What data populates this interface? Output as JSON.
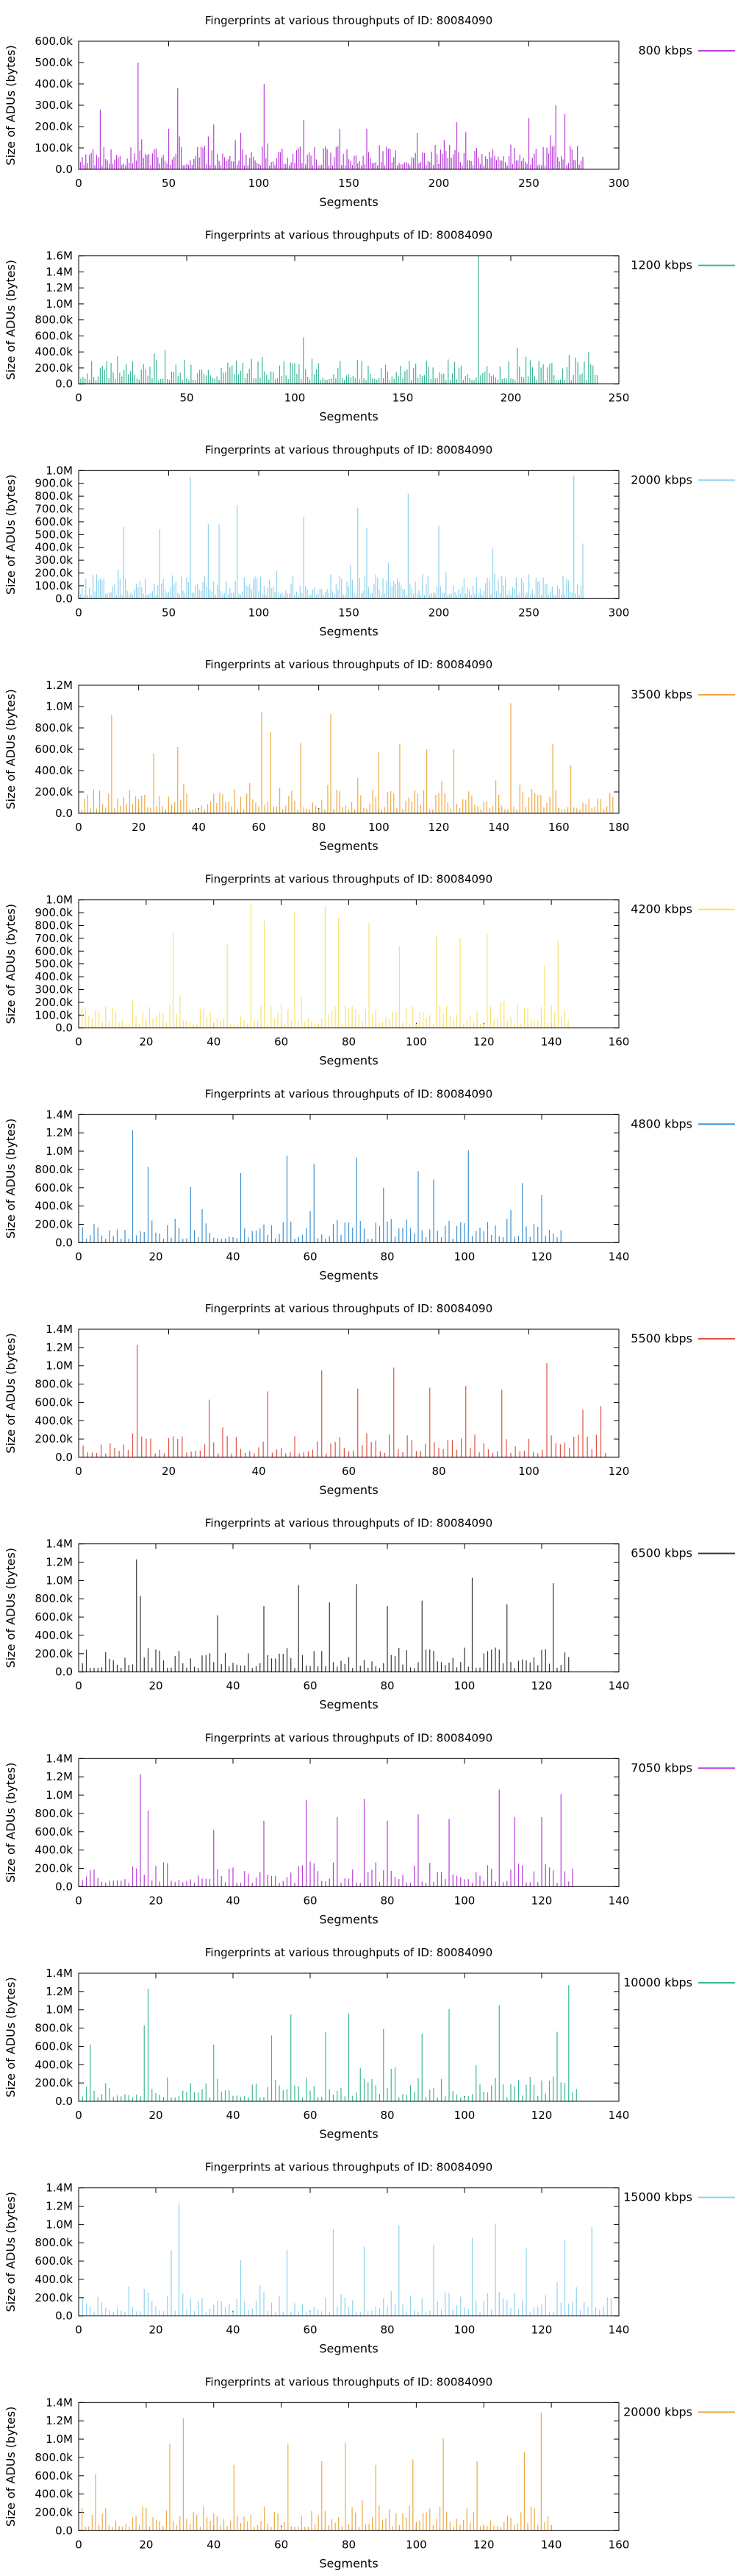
{
  "chart_data": [
    {
      "type": "bar",
      "title": "Fingerprints at various throughputs of ID: 80084090",
      "xlabel": "Segments",
      "ylabel": "Size of ADUs (bytes)",
      "xlim": [
        0,
        300
      ],
      "ylim": [
        0,
        600000
      ],
      "xticks": [
        "0",
        "50",
        "100",
        "150",
        "200",
        "250",
        "300"
      ],
      "yticks": [
        "0.0",
        "100.0k",
        "200.0k",
        "300.0k",
        "400.0k",
        "500.0k",
        "600.0k"
      ],
      "legend": {
        "placement": "right",
        "label": "800 kbps"
      },
      "color": "#b73cd8",
      "segments": 280,
      "peaks": [
        [
          12,
          280000
        ],
        [
          33,
          500000
        ],
        [
          35,
          140000
        ],
        [
          50,
          190000
        ],
        [
          55,
          380000
        ],
        [
          75,
          210000
        ],
        [
          90,
          170000
        ],
        [
          103,
          400000
        ],
        [
          125,
          230000
        ],
        [
          145,
          190000
        ],
        [
          160,
          190000
        ],
        [
          188,
          170000
        ],
        [
          210,
          220000
        ],
        [
          250,
          240000
        ],
        [
          262,
          160000
        ],
        [
          265,
          300000
        ],
        [
          270,
          260000
        ]
      ]
    },
    {
      "type": "bar",
      "title": "Fingerprints at various throughputs of ID: 80084090",
      "xlabel": "Segments",
      "ylabel": "Size of ADUs (bytes)",
      "xlim": [
        0,
        250
      ],
      "ylim": [
        0,
        1600000
      ],
      "xticks": [
        "0",
        "50",
        "100",
        "150",
        "200",
        "250"
      ],
      "yticks": [
        "0.0",
        "200.0k",
        "400.0k",
        "600.0k",
        "800.0k",
        "1.0M",
        "1.2M",
        "1.4M",
        "1.6M"
      ],
      "legend": {
        "placement": "right",
        "label": "1200 kbps"
      },
      "color": "#3ab796",
      "segments": 240,
      "peaks": [
        [
          35,
          380000
        ],
        [
          40,
          420000
        ],
        [
          104,
          580000
        ],
        [
          185,
          1600000
        ],
        [
          207,
          340000
        ],
        [
          230,
          330000
        ],
        [
          236,
          400000
        ]
      ]
    },
    {
      "type": "bar",
      "title": "Fingerprints at various throughputs of ID: 80084090",
      "xlabel": "Segments",
      "ylabel": "Size of ADUs (bytes)",
      "xlim": [
        0,
        300
      ],
      "ylim": [
        0,
        1000000
      ],
      "xticks": [
        "0",
        "50",
        "100",
        "150",
        "200",
        "250",
        "300"
      ],
      "yticks": [
        "0.0",
        "100.0k",
        "200.0k",
        "300.0k",
        "400.0k",
        "500.0k",
        "600.0k",
        "700.0k",
        "800.0k",
        "900.0k",
        "1.0M"
      ],
      "legend": {
        "placement": "right",
        "label": "2000 kbps"
      },
      "color": "#8ed2ee",
      "segments": 280,
      "peaks": [
        [
          25,
          560000
        ],
        [
          45,
          540000
        ],
        [
          62,
          950000
        ],
        [
          72,
          580000
        ],
        [
          78,
          580000
        ],
        [
          88,
          730000
        ],
        [
          125,
          640000
        ],
        [
          155,
          710000
        ],
        [
          160,
          550000
        ],
        [
          183,
          820000
        ],
        [
          200,
          570000
        ],
        [
          230,
          390000
        ],
        [
          275,
          960000
        ],
        [
          280,
          430000
        ]
      ]
    },
    {
      "type": "bar",
      "title": "Fingerprints at various throughputs of ID: 80084090",
      "xlabel": "Segments",
      "ylabel": "Size of ADUs (bytes)",
      "xlim": [
        0,
        180
      ],
      "ylim": [
        0,
        1200000
      ],
      "xticks": [
        "0",
        "20",
        "40",
        "60",
        "80",
        "100",
        "120",
        "140",
        "160",
        "180"
      ],
      "yticks": [
        "0.0",
        "200.0k",
        "400.0k",
        "600.0k",
        "800.0k",
        "1.0M",
        "1.2M"
      ],
      "legend": {
        "placement": "right",
        "label": "3500 kbps"
      },
      "color": "#eda93f",
      "segments": 178,
      "peaks": [
        [
          11,
          920000
        ],
        [
          25,
          560000
        ],
        [
          33,
          620000
        ],
        [
          61,
          950000
        ],
        [
          64,
          760000
        ],
        [
          74,
          660000
        ],
        [
          84,
          930000
        ],
        [
          100,
          570000
        ],
        [
          107,
          650000
        ],
        [
          116,
          600000
        ],
        [
          125,
          600000
        ],
        [
          144,
          1030000
        ],
        [
          158,
          650000
        ],
        [
          164,
          450000
        ]
      ]
    },
    {
      "type": "bar",
      "title": "Fingerprints at various throughputs of ID: 80084090",
      "xlabel": "Segments",
      "ylabel": "Size of ADUs (bytes)",
      "xlim": [
        0,
        160
      ],
      "ylim": [
        0,
        1000000
      ],
      "xticks": [
        "0",
        "20",
        "40",
        "60",
        "80",
        "100",
        "120",
        "140",
        "160"
      ],
      "yticks": [
        "0.0",
        "100.0k",
        "200.0k",
        "300.0k",
        "400.0k",
        "500.0k",
        "600.0k",
        "700.0k",
        "800.0k",
        "900.0k",
        "1.0M"
      ],
      "legend": {
        "placement": "right",
        "label": "4200 kbps"
      },
      "color": "#f7e26b",
      "segments": 145,
      "peaks": [
        [
          28,
          740000
        ],
        [
          44,
          650000
        ],
        [
          51,
          970000
        ],
        [
          55,
          840000
        ],
        [
          64,
          910000
        ],
        [
          73,
          950000
        ],
        [
          77,
          860000
        ],
        [
          86,
          820000
        ],
        [
          95,
          640000
        ],
        [
          106,
          720000
        ],
        [
          113,
          700000
        ],
        [
          121,
          730000
        ],
        [
          138,
          490000
        ],
        [
          142,
          680000
        ]
      ]
    },
    {
      "type": "bar",
      "title": "Fingerprints at various throughputs of ID: 80084090",
      "xlabel": "Segments",
      "ylabel": "Size of ADUs (bytes)",
      "xlim": [
        0,
        140
      ],
      "ylim": [
        0,
        1400000
      ],
      "xticks": [
        "0",
        "20",
        "40",
        "60",
        "80",
        "100",
        "120",
        "140"
      ],
      "yticks": [
        "0.0",
        "200.0k",
        "400.0k",
        "600.0k",
        "800.0k",
        "1.0M",
        "1.2M",
        "1.4M"
      ],
      "legend": {
        "placement": "right",
        "label": "4800 kbps"
      },
      "color": "#3a8fd0",
      "segments": 125,
      "peaks": [
        [
          14,
          1230000
        ],
        [
          18,
          830000
        ],
        [
          29,
          610000
        ],
        [
          42,
          760000
        ],
        [
          54,
          950000
        ],
        [
          61,
          860000
        ],
        [
          72,
          930000
        ],
        [
          79,
          600000
        ],
        [
          88,
          780000
        ],
        [
          92,
          690000
        ],
        [
          101,
          1010000
        ],
        [
          115,
          650000
        ],
        [
          120,
          520000
        ]
      ]
    },
    {
      "type": "bar",
      "title": "Fingerprints at various throughputs of ID: 80084090",
      "xlabel": "Segments",
      "ylabel": "Size of ADUs (bytes)",
      "xlim": [
        0,
        120
      ],
      "ylim": [
        0,
        1400000
      ],
      "xticks": [
        "0",
        "20",
        "40",
        "60",
        "80",
        "100",
        "120"
      ],
      "yticks": [
        "0.0",
        "200.0k",
        "400.0k",
        "600.0k",
        "800.0k",
        "1.0M",
        "1.2M",
        "1.4M"
      ],
      "legend": {
        "placement": "right",
        "label": "5500 kbps"
      },
      "color": "#e05040",
      "segments": 117,
      "peaks": [
        [
          13,
          1230000
        ],
        [
          29,
          630000
        ],
        [
          42,
          720000
        ],
        [
          54,
          950000
        ],
        [
          62,
          750000
        ],
        [
          70,
          980000
        ],
        [
          78,
          760000
        ],
        [
          86,
          780000
        ],
        [
          94,
          740000
        ],
        [
          104,
          1030000
        ],
        [
          112,
          520000
        ],
        [
          116,
          560000
        ]
      ]
    },
    {
      "type": "bar",
      "title": "Fingerprints at various throughputs of ID: 80084090",
      "xlabel": "Segments",
      "ylabel": "Size of ADUs (bytes)",
      "xlim": [
        0,
        140
      ],
      "ylim": [
        0,
        1400000
      ],
      "xticks": [
        "0",
        "20",
        "40",
        "60",
        "80",
        "100",
        "120",
        "140"
      ],
      "yticks": [
        "0.0",
        "200.0k",
        "400.0k",
        "600.0k",
        "800.0k",
        "1.0M",
        "1.2M",
        "1.4M"
      ],
      "legend": {
        "placement": "right",
        "label": "6500 kbps"
      },
      "color": "#333333",
      "segments": 127,
      "peaks": [
        [
          15,
          1230000
        ],
        [
          16,
          830000
        ],
        [
          36,
          620000
        ],
        [
          48,
          720000
        ],
        [
          57,
          950000
        ],
        [
          65,
          760000
        ],
        [
          72,
          960000
        ],
        [
          80,
          720000
        ],
        [
          89,
          780000
        ],
        [
          102,
          1030000
        ],
        [
          111,
          740000
        ],
        [
          123,
          970000
        ]
      ]
    },
    {
      "type": "bar",
      "title": "Fingerprints at various throughputs of ID: 80084090",
      "xlabel": "Segments",
      "ylabel": "Size of ADUs (bytes)",
      "xlim": [
        0,
        140
      ],
      "ylim": [
        0,
        1400000
      ],
      "xticks": [
        "0",
        "20",
        "40",
        "60",
        "80",
        "100",
        "120",
        "140"
      ],
      "yticks": [
        "0.0",
        "200.0k",
        "400.0k",
        "600.0k",
        "800.0k",
        "1.0M",
        "1.2M",
        "1.4M"
      ],
      "legend": {
        "placement": "right",
        "label": "7050 kbps"
      },
      "color": "#b73cd8",
      "segments": 128,
      "peaks": [
        [
          16,
          1230000
        ],
        [
          18,
          830000
        ],
        [
          35,
          620000
        ],
        [
          48,
          720000
        ],
        [
          59,
          950000
        ],
        [
          67,
          760000
        ],
        [
          74,
          960000
        ],
        [
          80,
          720000
        ],
        [
          88,
          790000
        ],
        [
          96,
          740000
        ],
        [
          109,
          1060000
        ],
        [
          113,
          760000
        ],
        [
          120,
          760000
        ],
        [
          125,
          1010000
        ]
      ]
    },
    {
      "type": "bar",
      "title": "Fingerprints at various throughputs of ID: 80084090",
      "xlabel": "Segments",
      "ylabel": "Size of ADUs (bytes)",
      "xlim": [
        0,
        140
      ],
      "ylim": [
        0,
        1400000
      ],
      "xticks": [
        "0",
        "20",
        "40",
        "60",
        "80",
        "100",
        "120",
        "140"
      ],
      "yticks": [
        "0.0",
        "200.0k",
        "400.0k",
        "600.0k",
        "800.0k",
        "1.0M",
        "1.2M",
        "1.4M"
      ],
      "legend": {
        "placement": "right",
        "label": "10000 kbps"
      },
      "color": "#3ab796",
      "segments": 129,
      "peaks": [
        [
          3,
          620000
        ],
        [
          17,
          830000
        ],
        [
          18,
          1230000
        ],
        [
          35,
          620000
        ],
        [
          50,
          720000
        ],
        [
          55,
          950000
        ],
        [
          64,
          760000
        ],
        [
          70,
          960000
        ],
        [
          79,
          790000
        ],
        [
          89,
          740000
        ],
        [
          96,
          1010000
        ],
        [
          109,
          1050000
        ],
        [
          124,
          760000
        ],
        [
          127,
          1270000
        ]
      ]
    },
    {
      "type": "bar",
      "title": "Fingerprints at various throughputs of ID: 80084090",
      "xlabel": "Segments",
      "ylabel": "Size of ADUs (bytes)",
      "xlim": [
        0,
        140
      ],
      "ylim": [
        0,
        1400000
      ],
      "xticks": [
        "0",
        "20",
        "40",
        "60",
        "80",
        "100",
        "120",
        "140"
      ],
      "yticks": [
        "0.0",
        "200.0k",
        "400.0k",
        "600.0k",
        "800.0k",
        "1.0M",
        "1.2M",
        "1.4M"
      ],
      "legend": {
        "placement": "right",
        "label": "15000 kbps"
      },
      "color": "#8ed2ee",
      "segments": 138,
      "peaks": [
        [
          24,
          720000
        ],
        [
          26,
          1230000
        ],
        [
          42,
          610000
        ],
        [
          54,
          720000
        ],
        [
          66,
          950000
        ],
        [
          74,
          760000
        ],
        [
          83,
          990000
        ],
        [
          92,
          780000
        ],
        [
          102,
          850000
        ],
        [
          108,
          1010000
        ],
        [
          116,
          740000
        ],
        [
          126,
          830000
        ],
        [
          133,
          970000
        ]
      ]
    },
    {
      "type": "bar",
      "title": "Fingerprints at various throughputs of ID: 80084090",
      "xlabel": "Segments",
      "ylabel": "Size of ADUs (bytes)",
      "xlim": [
        0,
        160
      ],
      "ylim": [
        0,
        1400000
      ],
      "xticks": [
        "0",
        "20",
        "40",
        "60",
        "80",
        "100",
        "120",
        "140",
        "160"
      ],
      "yticks": [
        "0.0",
        "200.0k",
        "400.0k",
        "600.0k",
        "800.0k",
        "1.0M",
        "1.2M",
        "1.4M"
      ],
      "legend": {
        "placement": "right",
        "label": "20000 kbps"
      },
      "color": "#eda93f",
      "segments": 140,
      "peaks": [
        [
          5,
          620000
        ],
        [
          27,
          950000
        ],
        [
          31,
          1230000
        ],
        [
          46,
          720000
        ],
        [
          62,
          950000
        ],
        [
          72,
          760000
        ],
        [
          79,
          960000
        ],
        [
          88,
          720000
        ],
        [
          99,
          780000
        ],
        [
          108,
          1010000
        ],
        [
          118,
          760000
        ],
        [
          132,
          860000
        ],
        [
          137,
          1290000
        ]
      ]
    }
  ]
}
